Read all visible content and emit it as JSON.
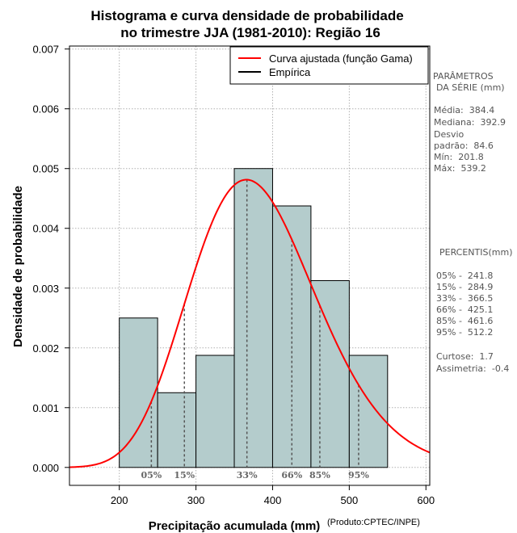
{
  "chart_data": {
    "type": "bar",
    "title_line1": "Histograma e curva densidade de probabilidade",
    "title_line2": "no trimestre JJA (1981-2010): Região 16",
    "xlabel": "Precipitação acumulada (mm)",
    "ylabel": "Densidade de probabilidade",
    "credit": "(Produto:CPTEC/INPE)",
    "xlim": [
      135,
      605
    ],
    "ylim": [
      -0.0003,
      0.00705
    ],
    "xticks": [
      200,
      300,
      400,
      500,
      600
    ],
    "yticks": [
      0.0,
      0.001,
      0.002,
      0.003,
      0.004,
      0.005,
      0.006,
      0.007
    ],
    "ytick_labels": [
      "0.000",
      "0.001",
      "0.002",
      "0.003",
      "0.004",
      "0.005",
      "0.006",
      "0.007"
    ],
    "bins": [
      {
        "from": 200,
        "to": 250,
        "density": 0.0025
      },
      {
        "from": 250,
        "to": 300,
        "density": 0.00125
      },
      {
        "from": 300,
        "to": 350,
        "density": 0.001875
      },
      {
        "from": 350,
        "to": 400,
        "density": 0.005
      },
      {
        "from": 400,
        "to": 450,
        "density": 0.004375
      },
      {
        "from": 450,
        "to": 500,
        "density": 0.003125
      },
      {
        "from": 500,
        "to": 550,
        "density": 0.001875
      }
    ],
    "gamma_fit": {
      "mean": 384.4,
      "sd": 84.6
    },
    "percentiles": [
      {
        "label": "05%",
        "value": 241.8
      },
      {
        "label": "15%",
        "value": 284.9
      },
      {
        "label": "33%",
        "value": 366.5
      },
      {
        "label": "66%",
        "value": 425.1
      },
      {
        "label": "85%",
        "value": 461.6
      },
      {
        "label": "95%",
        "value": 512.2
      }
    ],
    "legend": [
      {
        "label": "Curva ajustada (função Gama)",
        "color": "#ff0000"
      },
      {
        "label": "Empírica",
        "color": "#000000"
      }
    ],
    "bar_color": "#b4cccc"
  },
  "sidebar": {
    "params_title_1": "PARÂMETROS",
    "params_title_2": "DA SÉRIE (mm)",
    "media": "Média:  384.4",
    "mediana": "Mediana:  392.9",
    "desvio": "Desvio",
    "padrao": "padrão:  84.6",
    "min": "Mín:  201.8",
    "max": "Máx:  539.2",
    "percentis_title": "PERCENTIS(mm)",
    "p05": "05% -  241.8",
    "p15": "15% -  284.9",
    "p33": "33% -  366.5",
    "p66": "66% -  425.1",
    "p85": "85% -  461.6",
    "p95": "95% -  512.2",
    "curtose": "Curtose:  1.7",
    "assimetria": "Assimetria:  -0.4"
  }
}
